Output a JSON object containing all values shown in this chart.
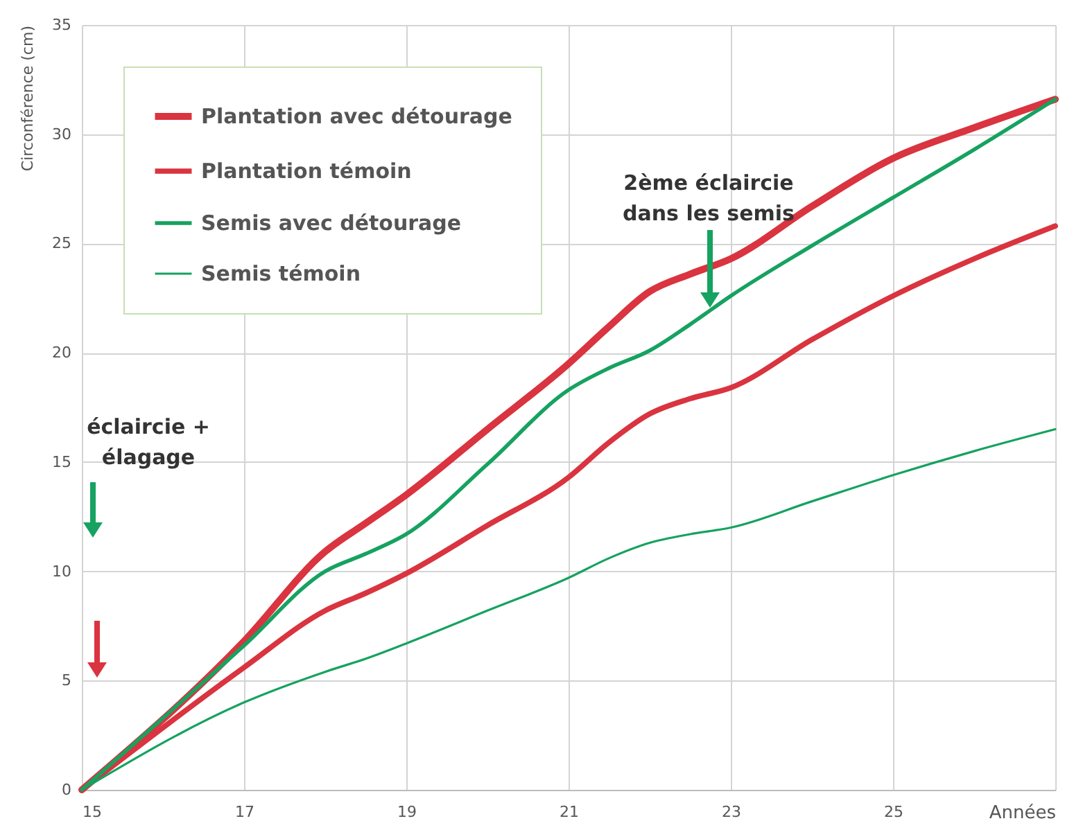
{
  "chart_data": {
    "type": "line",
    "xlabel": "Années",
    "ylabel": "Circonférence (cm)",
    "x": [
      15,
      17,
      18,
      18.5,
      19,
      20,
      21,
      21.5,
      22,
      22.5,
      23,
      24,
      25,
      26,
      27
    ],
    "series": [
      {
        "name": "Plantation avec détourage",
        "color": "#d9343f",
        "values": [
          0,
          6.8,
          10.9,
          12.2,
          13.5,
          16.5,
          19.5,
          21.2,
          22.8,
          23.6,
          24.3,
          26.7,
          28.9,
          30.3,
          31.6
        ]
      },
      {
        "name": "Plantation témoin",
        "color": "#d9343f",
        "values": [
          0,
          5.6,
          8.2,
          9.0,
          9.9,
          12.1,
          14.3,
          15.9,
          17.2,
          17.9,
          18.4,
          20.6,
          22.6,
          24.3,
          25.8
        ]
      },
      {
        "name": "Semis avec détourage",
        "color": "#16a260",
        "values": [
          0,
          6.6,
          10.0,
          10.8,
          11.7,
          14.9,
          18.3,
          19.3,
          20.1,
          21.3,
          22.6,
          24.9,
          27.1,
          29.3,
          31.6
        ]
      },
      {
        "name": "Semis témoin",
        "color": "#16a260",
        "values": [
          0,
          4.0,
          5.4,
          6.0,
          6.7,
          8.2,
          9.7,
          10.6,
          11.3,
          11.7,
          12.0,
          13.2,
          14.4,
          15.5,
          16.5
        ]
      }
    ],
    "xlim": [
      15,
      27
    ],
    "xticks": [
      15,
      17,
      19,
      21,
      23,
      25,
      {
        "value": 27,
        "label": null
      }
    ],
    "ylim": [
      0,
      35
    ],
    "yticks": [
      0,
      5,
      10,
      15,
      20,
      25,
      30,
      35
    ],
    "grid": true,
    "legend": "top left",
    "marker": "none",
    "line_style": "solid",
    "annotations": [
      "éclaircie +\nélagage",
      "2ème éclaircie\ndans les semis"
    ]
  }
}
